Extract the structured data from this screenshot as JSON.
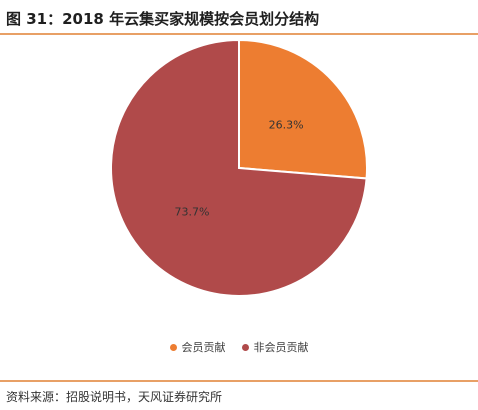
{
  "header": {
    "title": "图 31：2018 年云集买家规模按会员划分结构"
  },
  "footer": {
    "source": "资料来源：招股说明书，天风证券研究所"
  },
  "colors": {
    "accent_rule": "#e8a066",
    "slice_member": "#ed7d31",
    "slice_nonmember": "#b04a4a"
  },
  "chart_data": {
    "type": "pie",
    "title": "",
    "categories": [
      "会员贡献",
      "非会员贡献"
    ],
    "values": [
      26.3,
      73.7
    ],
    "labels": [
      "26.3%",
      "73.7%"
    ],
    "colors": [
      "#ed7d31",
      "#b04a4a"
    ],
    "legend_position": "bottom"
  }
}
